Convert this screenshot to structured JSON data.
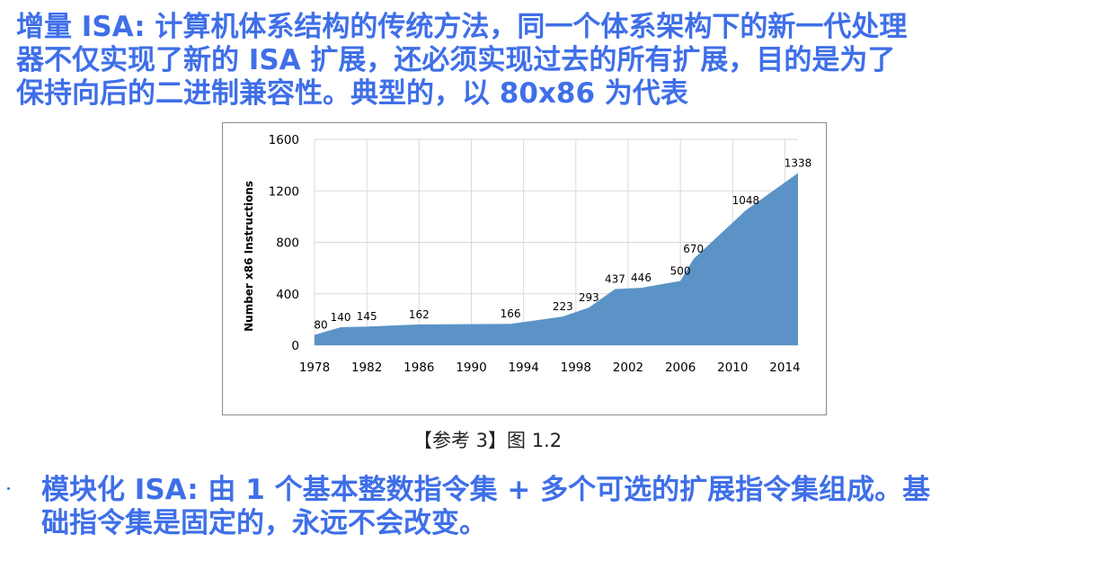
{
  "heading": {
    "lines": [
      "增量 ISA: 计算机体系结构的传统方法，同一个体系架构下的新一代处理",
      "器不仅实现了新的 ISA 扩展，还必须实现过去的所有扩展，目的是为了",
      "保持向后的二进制兼容性。典型的，以 80x86 为代表"
    ]
  },
  "caption": "【参考 3】图 1.2",
  "bullet": {
    "lines": [
      "模块化 ISA: 由 1 个基本整数指令集 + 多个可选的扩展指令集组成。基",
      "础指令集是固定的，永远不会改变。"
    ]
  },
  "colors": {
    "text_accent": "#3f6fe8",
    "area_fill": "#5b93c7",
    "grid": "#d9d9d9"
  },
  "chart_data": {
    "type": "area",
    "title": "",
    "xlabel": "",
    "ylabel": "Number x86 Instructions",
    "xlim": [
      1978,
      2015
    ],
    "ylim": [
      0,
      1600
    ],
    "x_ticks": [
      1978,
      1982,
      1986,
      1990,
      1994,
      1998,
      2002,
      2006,
      2010,
      2014
    ],
    "y_ticks": [
      0,
      400,
      800,
      1200,
      1600
    ],
    "grid": true,
    "series": [
      {
        "x": [
          1978,
          1980,
          1982,
          1986,
          1993,
          1997,
          1999,
          2001,
          2003,
          2006,
          2007,
          2011,
          2015
        ],
        "y": [
          80,
          140,
          145,
          162,
          166,
          223,
          293,
          437,
          446,
          500,
          670,
          1048,
          1338
        ],
        "labels": [
          "80",
          "140",
          "145",
          "162",
          "166",
          "223",
          "293",
          "437",
          "446",
          "500",
          "670",
          "1048",
          "1338"
        ]
      }
    ]
  }
}
